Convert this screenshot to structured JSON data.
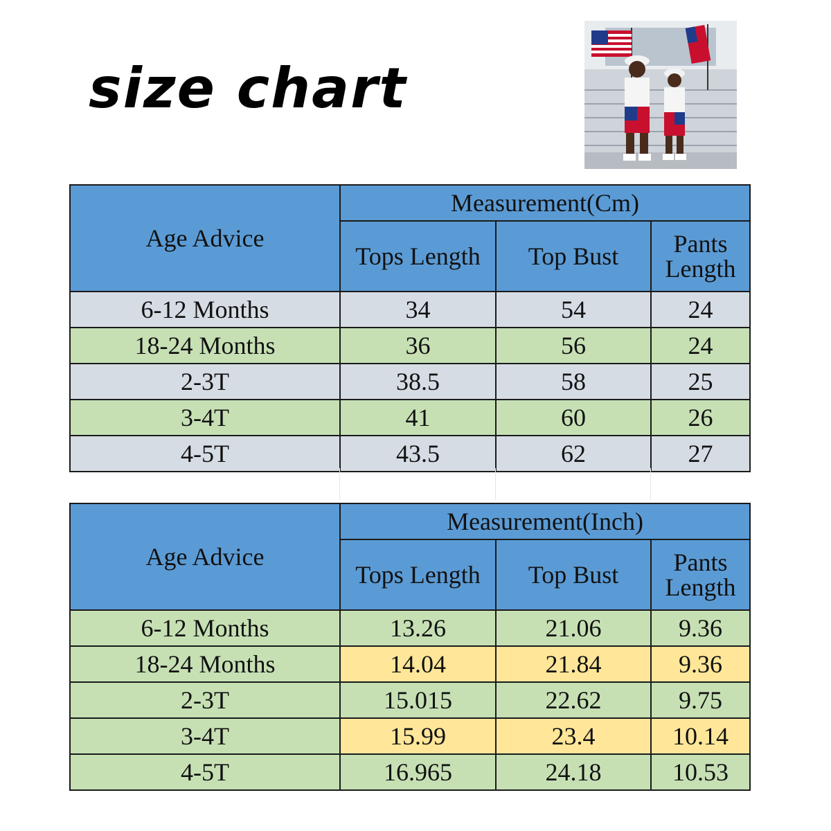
{
  "title": "size chart",
  "photo": {
    "alt": "two children in patriotic outfits holding flags"
  },
  "colors": {
    "header": "#5b9bd5",
    "gray": "#d6dce4",
    "green": "#c6e0b4",
    "yellow": "#ffe699"
  },
  "cm_table": {
    "age_header": "Age Advice",
    "group_header": "Measurement(Cm)",
    "columns": [
      "Tops Length",
      "Top Bust",
      "Pants Length"
    ],
    "rows": [
      {
        "age": "6-12 Months",
        "tops": "34",
        "bust": "54",
        "pants": "24"
      },
      {
        "age": "18-24 Months",
        "tops": "36",
        "bust": "56",
        "pants": "24"
      },
      {
        "age": "2-3T",
        "tops": "38.5",
        "bust": "58",
        "pants": "25"
      },
      {
        "age": "3-4T",
        "tops": "41",
        "bust": "60",
        "pants": "26"
      },
      {
        "age": "4-5T",
        "tops": "43.5",
        "bust": "62",
        "pants": "27"
      }
    ]
  },
  "inch_table": {
    "age_header": "Age Advice",
    "group_header": "Measurement(Inch)",
    "columns": [
      "Tops Length",
      "Top Bust",
      "Pants Length"
    ],
    "rows": [
      {
        "age": "6-12 Months",
        "tops": "13.26",
        "bust": "21.06",
        "pants": "9.36"
      },
      {
        "age": "18-24 Months",
        "tops": "14.04",
        "bust": "21.84",
        "pants": "9.36"
      },
      {
        "age": "2-3T",
        "tops": "15.015",
        "bust": "22.62",
        "pants": "9.75"
      },
      {
        "age": "3-4T",
        "tops": "15.99",
        "bust": "23.4",
        "pants": "10.14"
      },
      {
        "age": "4-5T",
        "tops": "16.965",
        "bust": "24.18",
        "pants": "10.53"
      }
    ]
  }
}
